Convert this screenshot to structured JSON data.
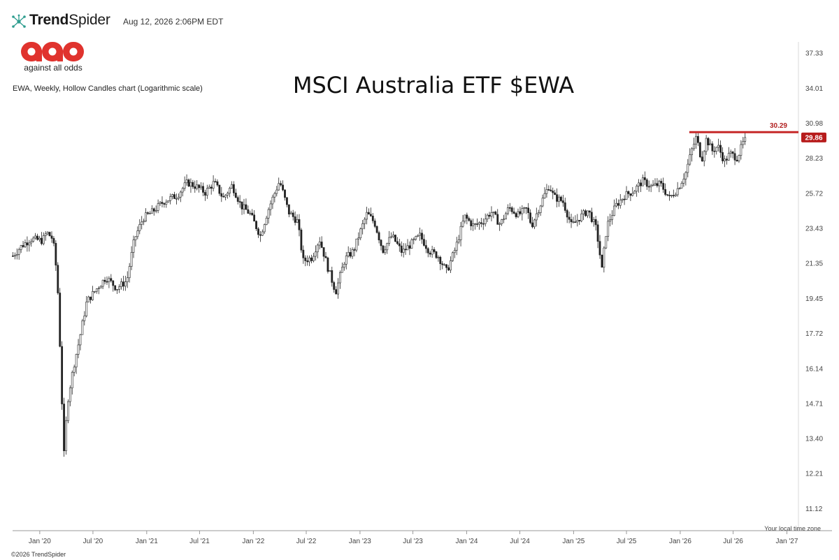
{
  "header": {
    "brand_bold": "Trend",
    "brand_rest": "Spider",
    "timestamp": "Aug 12, 2026 2:06PM EDT",
    "icon": "trendspider-network-icon"
  },
  "logo": {
    "text": "aao",
    "tagline": "against all odds",
    "color": "#e0332e"
  },
  "footer": {
    "timezone_note": "Your local time zone",
    "copyright": "©2026 TrendSpider"
  },
  "colors": {
    "level_line": "#c62828",
    "price_tag_bg": "#b71c1c",
    "candle": "#222222",
    "axis": "#999999"
  },
  "chart_data": {
    "type": "candlestick",
    "title": "MSCI Australia ETF $EWA",
    "description": "EWA, Weekly, Hollow Candles chart (Logarithmic scale)",
    "symbol": "EWA",
    "interval": "Weekly",
    "scale": "log",
    "ylim": [
      10.5,
      38.5
    ],
    "y_ticks": [
      "37.33",
      "34.01",
      "30.98",
      "28.23",
      "25.72",
      "23.43",
      "21.35",
      "19.45",
      "17.72",
      "16.14",
      "14.71",
      "13.40",
      "12.21",
      "11.12"
    ],
    "x_ticks": [
      "Jan '20",
      "Jul '20",
      "Jan '21",
      "Jul '21",
      "Jan '22",
      "Jul '22",
      "Jan '23",
      "Jul '23",
      "Jan '24",
      "Jul '24",
      "Jan '25",
      "Jul '25",
      "Jan '26",
      "Jul '26",
      "Jan '27"
    ],
    "x_start": "2019-09-30",
    "x_end": "2027-01-31",
    "resistance_level": {
      "value": 30.29,
      "label": "30.29"
    },
    "last_price": {
      "value": 29.86,
      "label": "29.86"
    },
    "price_path": [
      [
        "2019-10-01",
        21.8
      ],
      [
        "2019-11-01",
        22.4
      ],
      [
        "2019-12-01",
        22.8
      ],
      [
        "2020-01-10",
        22.7
      ],
      [
        "2020-01-25",
        23.2
      ],
      [
        "2020-02-15",
        22.8
      ],
      [
        "2020-03-01",
        20.5
      ],
      [
        "2020-03-12",
        16.5
      ],
      [
        "2020-03-23",
        12.7
      ],
      [
        "2020-04-05",
        14.8
      ],
      [
        "2020-04-25",
        16.2
      ],
      [
        "2020-05-15",
        17.4
      ],
      [
        "2020-06-10",
        19.3
      ],
      [
        "2020-07-10",
        19.9
      ],
      [
        "2020-08-15",
        20.6
      ],
      [
        "2020-09-20",
        20.0
      ],
      [
        "2020-10-25",
        20.4
      ],
      [
        "2020-11-20",
        22.8
      ],
      [
        "2020-12-20",
        24.1
      ],
      [
        "2021-01-20",
        24.5
      ],
      [
        "2021-03-01",
        25.2
      ],
      [
        "2021-04-15",
        25.6
      ],
      [
        "2021-05-20",
        26.5
      ],
      [
        "2021-06-20",
        26.2
      ],
      [
        "2021-07-20",
        25.8
      ],
      [
        "2021-08-20",
        26.5
      ],
      [
        "2021-09-20",
        25.4
      ],
      [
        "2021-10-20",
        26.3
      ],
      [
        "2021-11-20",
        24.9
      ],
      [
        "2021-12-20",
        24.4
      ],
      [
        "2022-01-25",
        23.0
      ],
      [
        "2022-02-20",
        24.6
      ],
      [
        "2022-04-01",
        26.6
      ],
      [
        "2022-05-01",
        24.5
      ],
      [
        "2022-06-01",
        23.9
      ],
      [
        "2022-06-20",
        21.5
      ],
      [
        "2022-07-20",
        21.7
      ],
      [
        "2022-08-15",
        22.8
      ],
      [
        "2022-09-15",
        21.0
      ],
      [
        "2022-10-10",
        19.8
      ],
      [
        "2022-11-10",
        21.6
      ],
      [
        "2022-12-10",
        22.1
      ],
      [
        "2023-01-25",
        24.4
      ],
      [
        "2023-02-20",
        23.8
      ],
      [
        "2023-03-20",
        22.1
      ],
      [
        "2023-04-20",
        23.0
      ],
      [
        "2023-05-25",
        22.0
      ],
      [
        "2023-06-25",
        22.5
      ],
      [
        "2023-07-25",
        23.0
      ],
      [
        "2023-08-25",
        22.1
      ],
      [
        "2023-09-25",
        21.8
      ],
      [
        "2023-10-25",
        20.9
      ],
      [
        "2023-11-25",
        22.3
      ],
      [
        "2023-12-25",
        24.2
      ],
      [
        "2024-01-25",
        23.6
      ],
      [
        "2024-02-25",
        23.9
      ],
      [
        "2024-03-25",
        24.5
      ],
      [
        "2024-04-25",
        23.7
      ],
      [
        "2024-05-25",
        24.8
      ],
      [
        "2024-06-25",
        24.3
      ],
      [
        "2024-07-25",
        24.7
      ],
      [
        "2024-08-10",
        23.6
      ],
      [
        "2024-09-25",
        25.7
      ],
      [
        "2024-10-10",
        26.3
      ],
      [
        "2024-10-25",
        25.5
      ],
      [
        "2024-11-25",
        25.2
      ],
      [
        "2024-12-25",
        23.6
      ],
      [
        "2025-01-25",
        24.2
      ],
      [
        "2025-02-20",
        24.6
      ],
      [
        "2025-03-20",
        23.4
      ],
      [
        "2025-04-08",
        21.0
      ],
      [
        "2025-04-25",
        23.6
      ],
      [
        "2025-05-25",
        24.9
      ],
      [
        "2025-06-25",
        25.6
      ],
      [
        "2025-07-25",
        25.9
      ],
      [
        "2025-08-25",
        26.6
      ],
      [
        "2025-09-25",
        26.2
      ],
      [
        "2025-10-25",
        26.4
      ],
      [
        "2025-11-25",
        25.4
      ],
      [
        "2025-12-25",
        26.1
      ],
      [
        "2026-01-20",
        27.2
      ],
      [
        "2026-02-10",
        28.9
      ],
      [
        "2026-02-25",
        29.9
      ],
      [
        "2026-03-15",
        28.1
      ],
      [
        "2026-04-01",
        29.8
      ],
      [
        "2026-04-20",
        28.8
      ],
      [
        "2026-05-10",
        29.2
      ],
      [
        "2026-06-01",
        28.0
      ],
      [
        "2026-06-20",
        28.6
      ],
      [
        "2026-07-15",
        28.3
      ],
      [
        "2026-08-12",
        29.86
      ]
    ]
  }
}
